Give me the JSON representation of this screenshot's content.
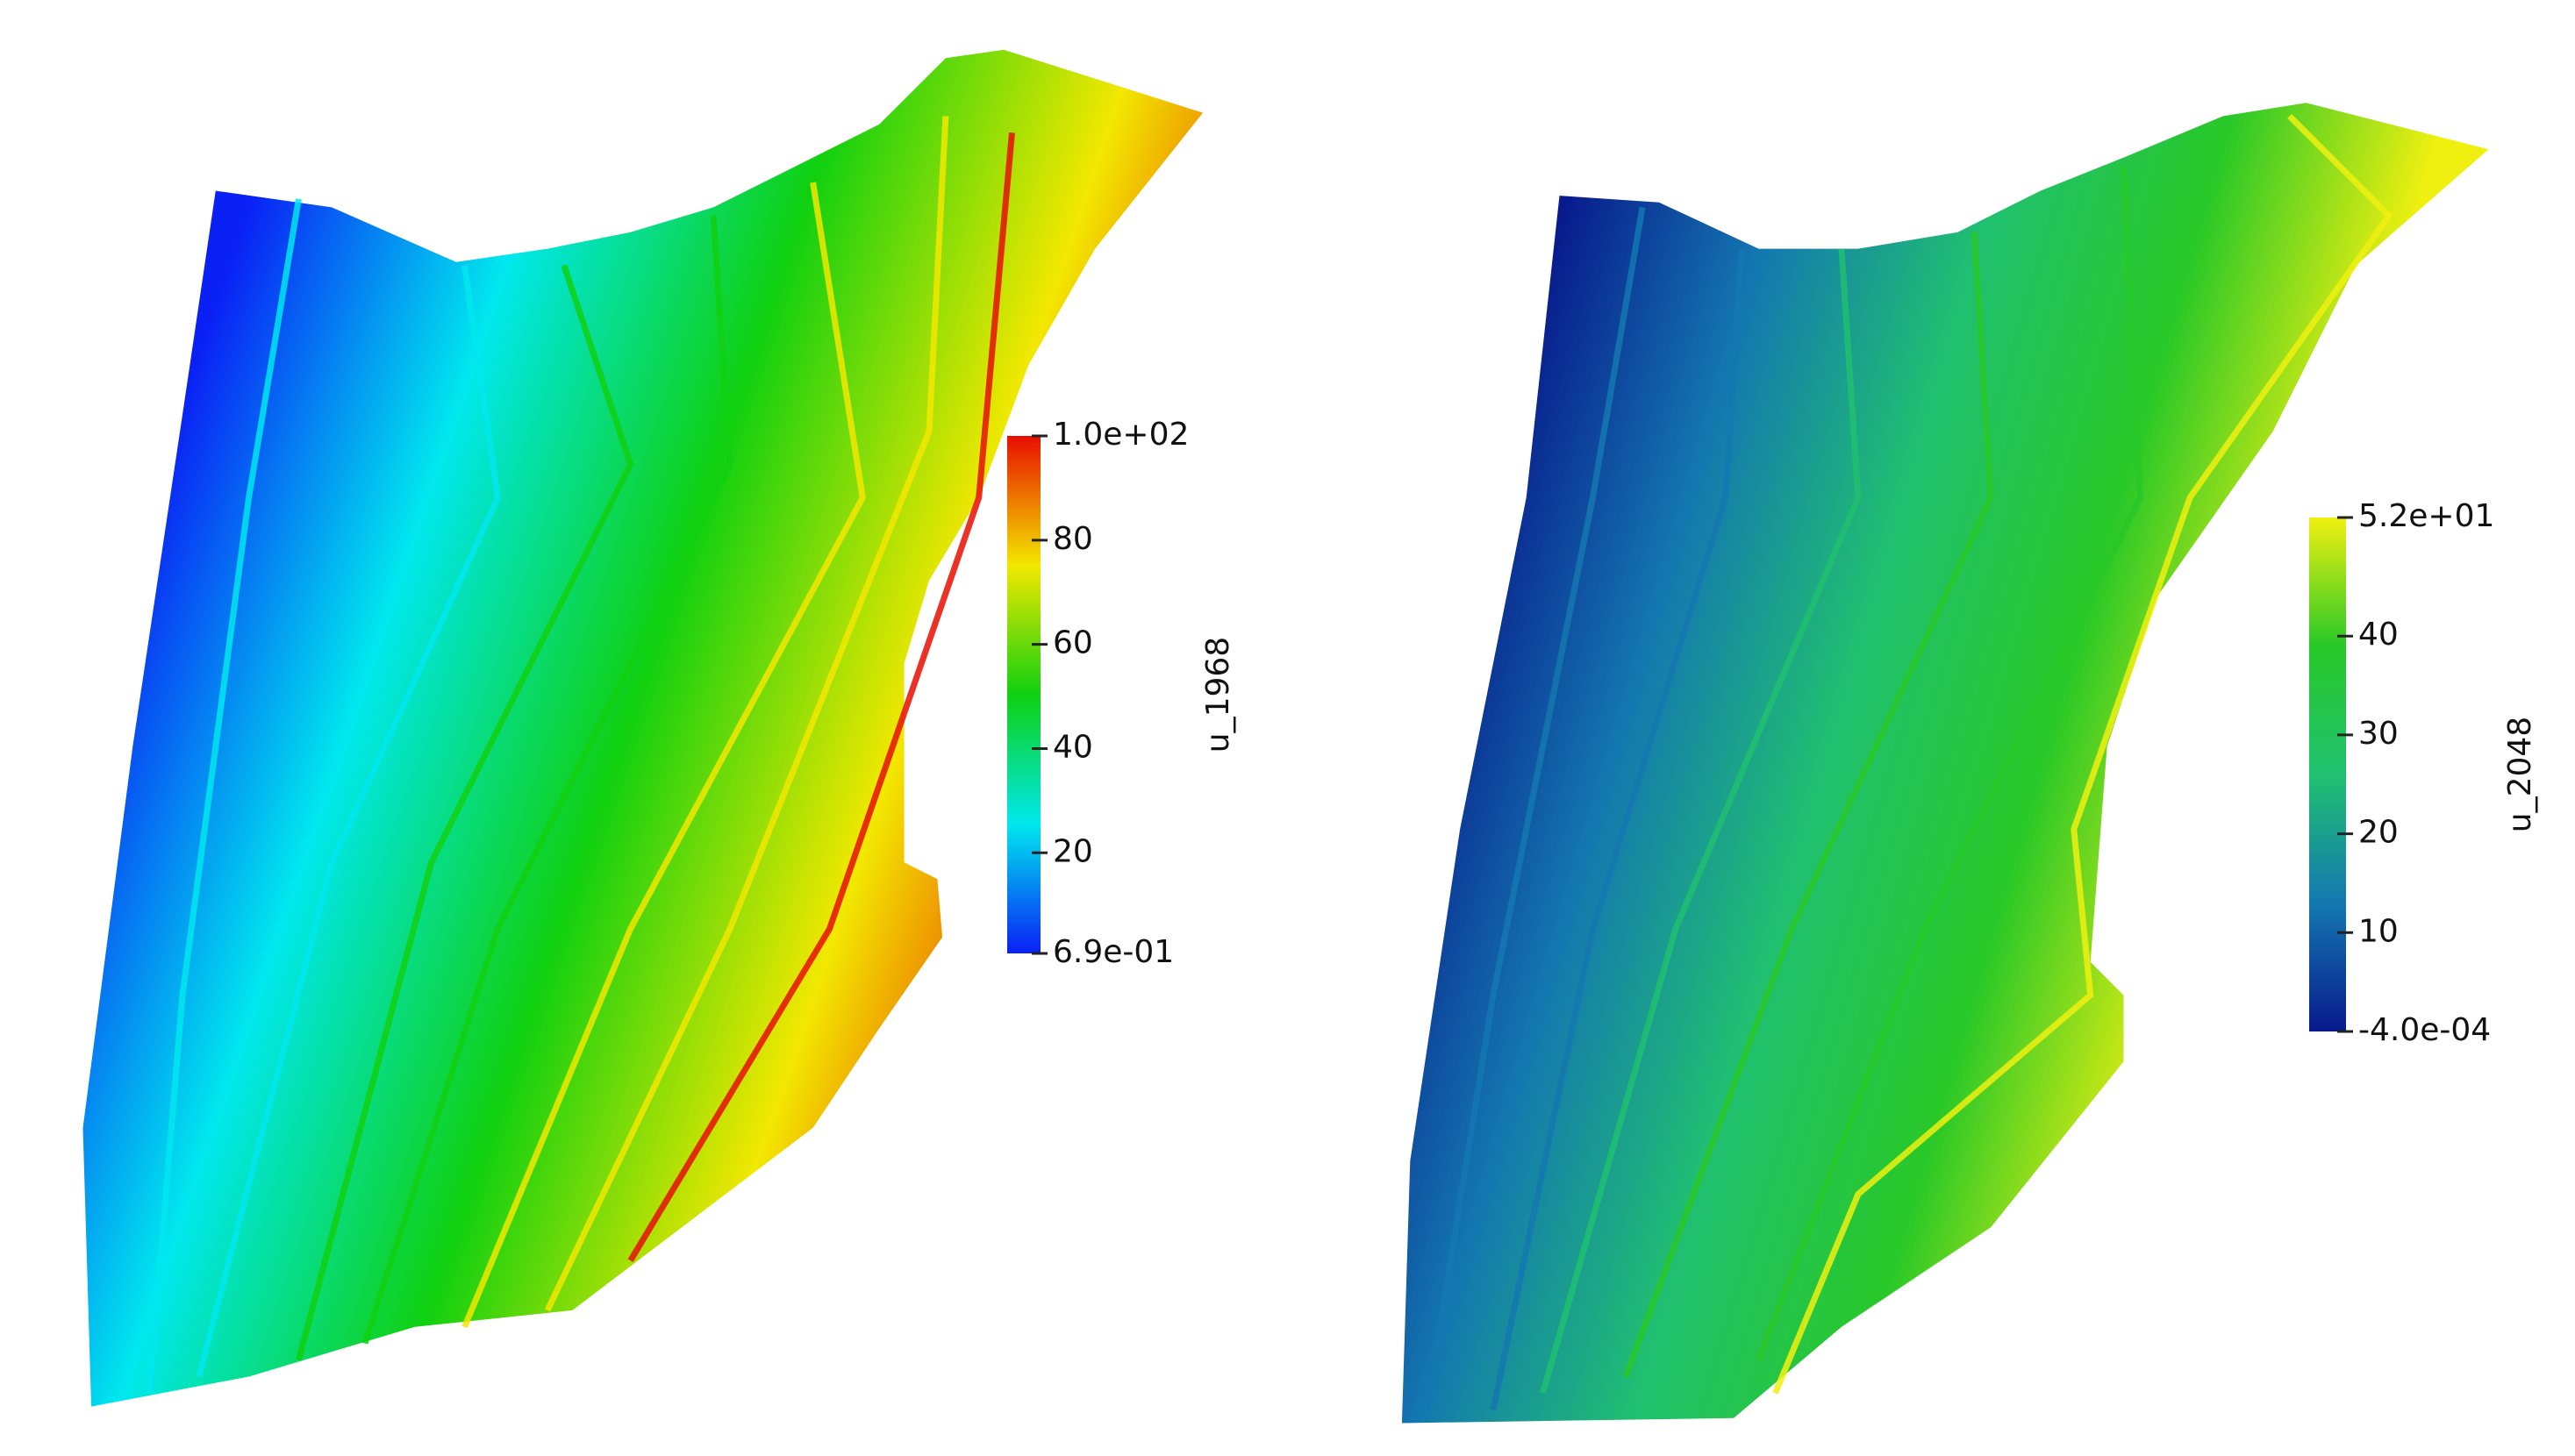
{
  "chart_data": [
    {
      "type": "colormap",
      "title": "u_1968",
      "colors": [
        "#0a20f5",
        "#00e8ee",
        "#10d010",
        "#f2e800",
        "#e80e00"
      ],
      "ylim": [
        0.69,
        100
      ],
      "yticks": [
        {
          "value": 100,
          "label": "1.0e+02"
        },
        80,
        60,
        40,
        20,
        {
          "value": 0.69,
          "label": "6.9e-01"
        }
      ]
    },
    {
      "type": "colormap",
      "title": "u_2048",
      "colors": [
        "#081a8c",
        "#1478b0",
        "#20c070",
        "#28c828",
        "#f0f010"
      ],
      "ylim": [
        -0.0004,
        52
      ],
      "yticks": [
        {
          "value": 52,
          "label": "5.2e+01"
        },
        40,
        30,
        20,
        10,
        {
          "value": -0.0004,
          "label": "-4.0e-04"
        }
      ]
    }
  ]
}
